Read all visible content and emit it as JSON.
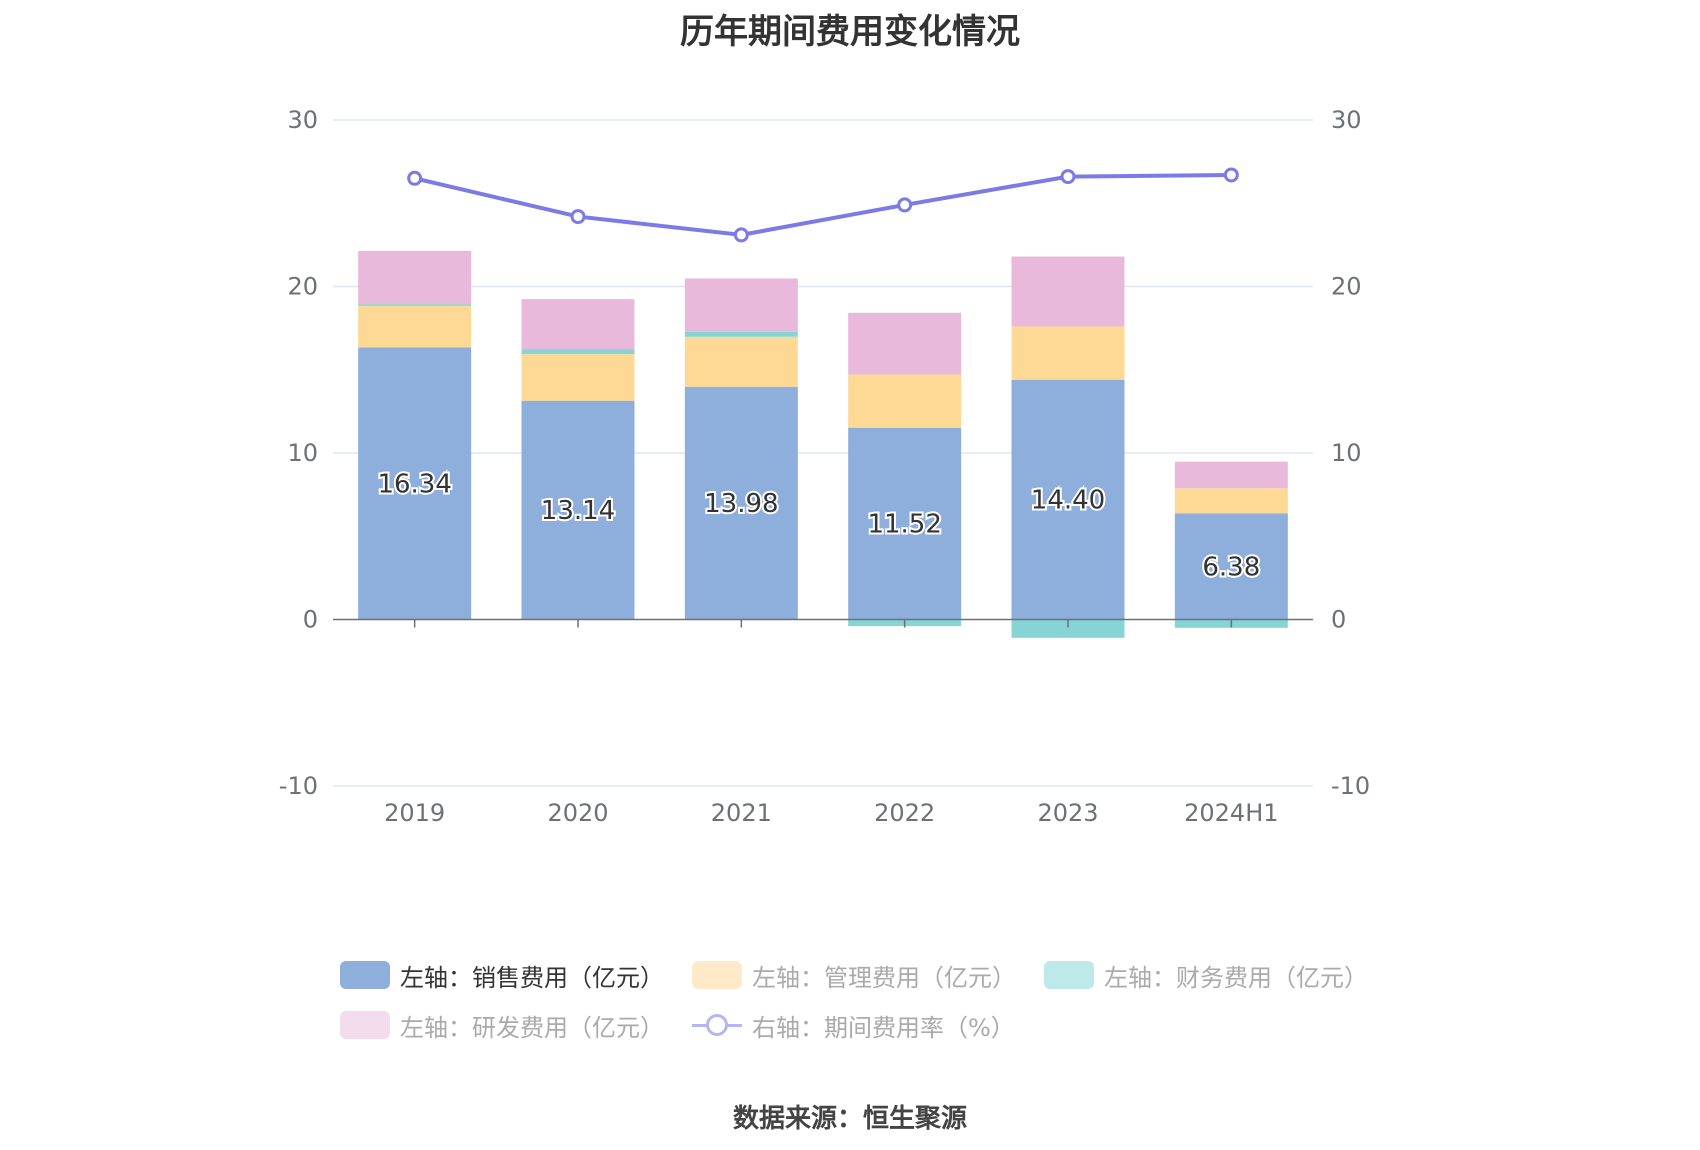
{
  "title": "历年期间费用变化情况",
  "source": "数据来源：恒生聚源",
  "colors": {
    "sales": "#8eaedb",
    "admin": "#fed996",
    "finance": "#86d4d4",
    "rd": "#e8b9da",
    "rate": "#7b7be8",
    "legend_rate": "#b4b6f3"
  },
  "legend": {
    "sales": "左轴：销售费用（亿元）",
    "admin": "左轴：管理费用（亿元）",
    "finance": "左轴：财务费用（亿元）",
    "rd": "左轴：研发费用（亿元）",
    "rate": "右轴：期间费用率（%）"
  },
  "chart_data": {
    "type": "bar",
    "stacked": true,
    "categories": [
      "2019",
      "2020",
      "2021",
      "2022",
      "2023",
      "2024H1"
    ],
    "series": [
      {
        "name": "左轴：销售费用（亿元）",
        "axis": "left",
        "values": [
          16.34,
          13.14,
          13.98,
          11.52,
          14.4,
          6.38
        ],
        "labels": [
          "16.34",
          "13.14",
          "13.98",
          "11.52",
          "14.40",
          "6.38"
        ]
      },
      {
        "name": "左轴：管理费用（亿元）",
        "axis": "left",
        "values": [
          2.5,
          2.8,
          3.0,
          3.2,
          3.2,
          1.5
        ]
      },
      {
        "name": "左轴：财务费用（亿元）",
        "axis": "left",
        "values": [
          0.1,
          0.3,
          0.3,
          -0.4,
          -1.1,
          -0.5
        ]
      },
      {
        "name": "左轴：研发费用（亿元）",
        "axis": "left",
        "values": [
          3.2,
          3.0,
          3.2,
          3.7,
          4.2,
          1.6
        ]
      },
      {
        "name": "右轴：期间费用率（%）",
        "axis": "right",
        "type": "line",
        "values": [
          26.5,
          24.2,
          23.1,
          24.9,
          26.6,
          26.7
        ]
      }
    ],
    "yticks_left": [
      "30",
      "20",
      "10",
      "0",
      "-10"
    ],
    "yticks_right": [
      "30",
      "20",
      "10",
      "0",
      "-10"
    ],
    "ylim_left": [
      -10,
      30
    ],
    "ylim_right": [
      -10,
      30
    ],
    "grid": true,
    "legend_position": "bottom"
  }
}
